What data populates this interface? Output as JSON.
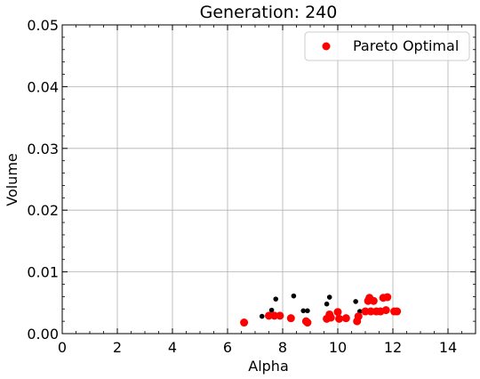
{
  "chart_data": {
    "type": "scatter",
    "title": "Generation: 240",
    "xlabel": "Alpha",
    "ylabel": "Volume",
    "xlim": [
      0,
      15
    ],
    "ylim": [
      0,
      0.05
    ],
    "xticks": [
      0,
      2,
      4,
      6,
      8,
      10,
      12,
      14
    ],
    "xtick_labels": [
      "0",
      "2",
      "4",
      "6",
      "8",
      "10",
      "12",
      "14"
    ],
    "yticks": [
      0,
      0.01,
      0.02,
      0.03,
      0.04,
      0.05
    ],
    "ytick_labels": [
      "0.00",
      "0.01",
      "0.02",
      "0.03",
      "0.04",
      "0.05"
    ],
    "grid": true,
    "legend_position": "top-right",
    "colors": {
      "population": "#000000",
      "pareto": "#ff0000"
    },
    "series": [
      {
        "color": "#000000",
        "points": [
          {
            "x": 7.25,
            "y": 0.0028
          },
          {
            "x": 7.6,
            "y": 0.0038
          },
          {
            "x": 7.75,
            "y": 0.0056
          },
          {
            "x": 8.4,
            "y": 0.0061
          },
          {
            "x": 8.75,
            "y": 0.0037
          },
          {
            "x": 8.9,
            "y": 0.0037
          },
          {
            "x": 9.6,
            "y": 0.0048
          },
          {
            "x": 9.7,
            "y": 0.0059
          },
          {
            "x": 10.65,
            "y": 0.0052
          },
          {
            "x": 10.8,
            "y": 0.0036
          },
          {
            "x": 11.3,
            "y": 0.0036
          }
        ]
      },
      {
        "name": "Pareto Optimal",
        "color": "#ff0000",
        "points": [
          {
            "x": 6.6,
            "y": 0.0018
          },
          {
            "x": 7.5,
            "y": 0.0029
          },
          {
            "x": 7.7,
            "y": 0.0029
          },
          {
            "x": 7.9,
            "y": 0.0029
          },
          {
            "x": 8.3,
            "y": 0.0025
          },
          {
            "x": 8.85,
            "y": 0.002
          },
          {
            "x": 8.9,
            "y": 0.0018
          },
          {
            "x": 9.6,
            "y": 0.0024
          },
          {
            "x": 9.7,
            "y": 0.0031
          },
          {
            "x": 9.75,
            "y": 0.0026
          },
          {
            "x": 10.0,
            "y": 0.0035
          },
          {
            "x": 10.05,
            "y": 0.0024
          },
          {
            "x": 10.3,
            "y": 0.0025
          },
          {
            "x": 10.7,
            "y": 0.002
          },
          {
            "x": 10.75,
            "y": 0.0028
          },
          {
            "x": 11.0,
            "y": 0.0036
          },
          {
            "x": 11.1,
            "y": 0.0053
          },
          {
            "x": 11.15,
            "y": 0.0058
          },
          {
            "x": 11.2,
            "y": 0.0036
          },
          {
            "x": 11.3,
            "y": 0.0053
          },
          {
            "x": 11.4,
            "y": 0.0036
          },
          {
            "x": 11.55,
            "y": 0.0036
          },
          {
            "x": 11.65,
            "y": 0.0058
          },
          {
            "x": 11.75,
            "y": 0.0038
          },
          {
            "x": 11.8,
            "y": 0.0059
          },
          {
            "x": 12.05,
            "y": 0.0036
          },
          {
            "x": 12.15,
            "y": 0.0036
          }
        ]
      }
    ]
  }
}
